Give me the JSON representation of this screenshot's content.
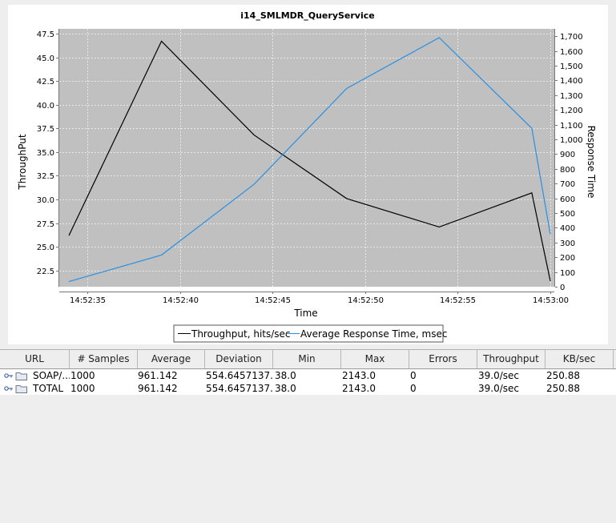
{
  "chart_data": {
    "type": "line",
    "title": "i14_SMLMDR_QueryService",
    "xlabel": "Time",
    "ylabel": "ThroughPut",
    "y2label": "Response Time",
    "x": [
      "14:52:34",
      "14:52:39",
      "14:52:44",
      "14:52:49",
      "14:52:54",
      "14:52:59",
      "14:53:00"
    ],
    "x_ticks": [
      "14:52:35",
      "14:52:40",
      "14:52:45",
      "14:52:50",
      "14:52:55",
      "14:53:00"
    ],
    "ylim": [
      20.8,
      48.0
    ],
    "y_ticks": [
      "22.5",
      "25.0",
      "27.5",
      "30.0",
      "32.5",
      "35.0",
      "37.5",
      "40.0",
      "42.5",
      "45.0",
      "47.5"
    ],
    "y2lim": [
      0,
      1750
    ],
    "y2_ticks": [
      "0",
      "100",
      "200",
      "300",
      "400",
      "500",
      "600",
      "700",
      "800",
      "900",
      "1,000",
      "1,100",
      "1,200",
      "1,300",
      "1,400",
      "1,500",
      "1,600",
      "1,700"
    ],
    "series": [
      {
        "name": "Throughput, hits/sec",
        "axis": "left",
        "color": "#000000",
        "values": [
          26.2,
          46.7,
          36.8,
          30.1,
          27.1,
          30.7,
          21.4
        ]
      },
      {
        "name": "Average Response Time, msec",
        "axis": "right",
        "color": "#2a8fe0",
        "values": [
          35,
          215,
          695,
          1345,
          1690,
          1075,
          355
        ]
      }
    ],
    "grid": true,
    "legend_position": "bottom",
    "plot_background": "#c0c0c0"
  },
  "table": {
    "columns": [
      "URL",
      "# Samples",
      "Average",
      "Deviation",
      "Min",
      "Max",
      "Errors",
      "Throughput",
      "KB/sec"
    ],
    "rows": [
      {
        "url": "SOAP/...",
        "samples": "1000",
        "average": "961.142",
        "deviation": "554.6457137...",
        "min": "38.0",
        "max": "2143.0",
        "errors": "0",
        "throughput": "39.0/sec",
        "kbsec": "250.88"
      },
      {
        "url": "TOTAL",
        "samples": "1000",
        "average": "961.142",
        "deviation": "554.6457137...",
        "min": "38.0",
        "max": "2143.0",
        "errors": "0",
        "throughput": "39.0/sec",
        "kbsec": "250.88"
      }
    ],
    "row_icon": "key-folder-icon"
  }
}
